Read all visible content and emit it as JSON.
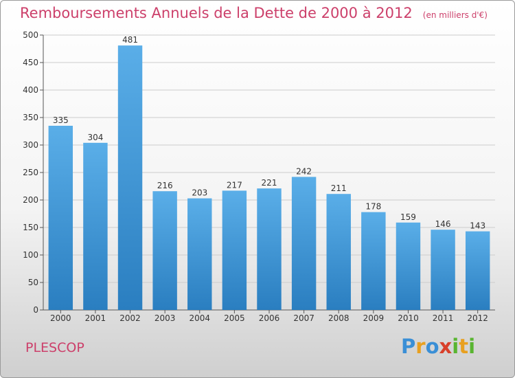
{
  "chart_data": {
    "type": "bar",
    "title": "Remboursements Annuels de la Dette de 2000 à 2012",
    "subtitle": "(en milliers d'€)",
    "categories": [
      "2000",
      "2001",
      "2002",
      "2003",
      "2004",
      "2005",
      "2006",
      "2007",
      "2008",
      "2009",
      "2010",
      "2011",
      "2012"
    ],
    "values": [
      335,
      304,
      481,
      216,
      203,
      217,
      221,
      242,
      211,
      178,
      159,
      146,
      143
    ],
    "ylim": [
      0,
      500
    ],
    "yticks": [
      0,
      50,
      100,
      150,
      200,
      250,
      300,
      350,
      400,
      450,
      500
    ],
    "grid": true,
    "colors": {
      "bar_top": "#5aaee8",
      "bar_bottom": "#2a7ec0",
      "title": "#cc3f6a",
      "grid": "#cccccc"
    }
  },
  "place_name": "PLESCOP",
  "logo": {
    "letters": [
      "P",
      "r",
      "o",
      "x",
      "i",
      "t",
      "i"
    ],
    "colors": [
      "#3a8fd6",
      "#e8a020",
      "#3a8fd6",
      "#d8402a",
      "#59b531",
      "#e8a020",
      "#59b531"
    ]
  }
}
